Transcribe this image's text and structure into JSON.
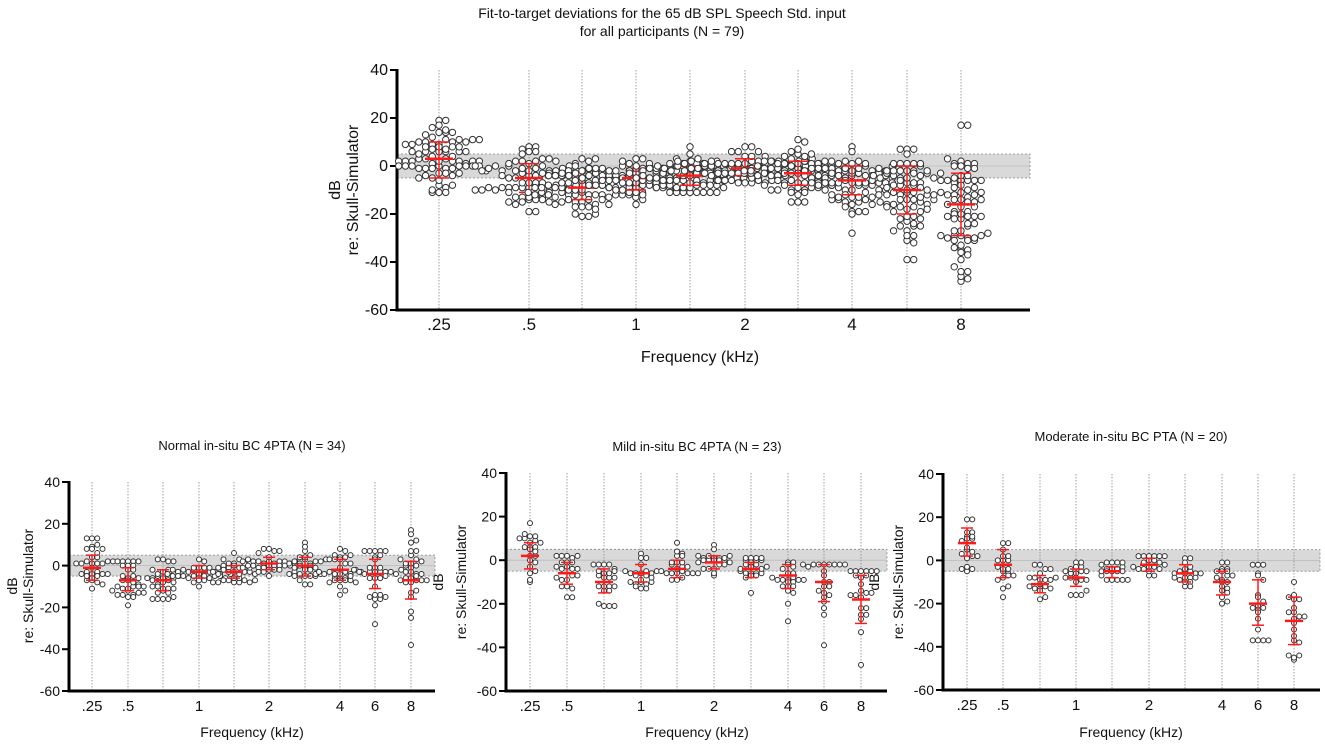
{
  "chart_data": [
    {
      "type": "scatter",
      "title": [
        "Fit-to-target deviations for the 65 dB SPL Speech Std. input",
        "for all participants (N = 79)"
      ],
      "n": 79,
      "xlabel": "Frequency (kHz)",
      "ylabel": [
        "dB",
        "re: Skull-Simulator"
      ],
      "ylim": [
        -60,
        40
      ],
      "yticks": [
        "40",
        "20",
        "0",
        "-20",
        "-40",
        "-60"
      ],
      "target_band": [
        -5,
        5
      ],
      "groups": [
        ".25",
        ".5",
        ".75",
        "1",
        "1.5",
        "2",
        "3",
        "4",
        "6",
        "8"
      ],
      "xtick_labels": {
        "0": ".25",
        "1": ".5",
        "3": "1",
        "5": "2",
        "7": "4",
        "9": "8"
      },
      "mean": [
        3,
        -5,
        -9,
        -5,
        -4,
        -1,
        -3,
        -6,
        -10,
        -16
      ],
      "sd_low": [
        -5,
        -11,
        -14,
        -10,
        -8,
        -4,
        -8,
        -12,
        -20,
        -29
      ],
      "sd_high": [
        10,
        1,
        -4,
        -1,
        0,
        3,
        2,
        0,
        0,
        -3
      ],
      "min": [
        -11,
        -19,
        -21,
        -16,
        -11,
        -7,
        -15,
        -28,
        -39,
        -48
      ],
      "max": [
        19,
        8,
        3,
        3,
        8,
        8,
        11,
        8,
        7,
        17
      ]
    },
    {
      "type": "scatter",
      "title": [
        "Normal in-situ BC 4PTA  (N = 34)"
      ],
      "n": 34,
      "xlabel": "Frequency (kHz)",
      "ylabel": [
        "dB",
        "re: Skull-Simulator"
      ],
      "ylim": [
        -60,
        40
      ],
      "yticks": [
        "40",
        "20",
        "0",
        "-20",
        "-40",
        "-60"
      ],
      "target_band": [
        -5,
        5
      ],
      "groups": [
        ".25",
        ".5",
        ".75",
        "1",
        "1.5",
        "2",
        "3",
        "4",
        "6",
        "8"
      ],
      "xtick_labels": {
        "0": ".25",
        "1": ".5",
        "3": "1",
        "5": "2",
        "7": "4",
        "8": "6",
        "9": "8"
      },
      "mean": [
        -1,
        -7,
        -7,
        -3,
        -3,
        1,
        0,
        -2,
        -4,
        -7
      ],
      "sd_low": [
        -7,
        -12,
        -12,
        -6,
        -6,
        -2,
        -5,
        -7,
        -11,
        -16
      ],
      "sd_high": [
        5,
        -1,
        -2,
        0,
        0,
        4,
        4,
        3,
        3,
        2
      ],
      "min": [
        -11,
        -19,
        -16,
        -10,
        -8,
        -5,
        -9,
        -14,
        -28,
        -38
      ],
      "max": [
        13,
        2,
        3,
        3,
        6,
        8,
        11,
        8,
        7,
        17
      ]
    },
    {
      "type": "scatter",
      "title": [
        "Mild in-situ BC 4PTA (N = 23)"
      ],
      "n": 23,
      "xlabel": "Frequency (kHz)",
      "ylabel": [
        "dB",
        "re: Skull-Simulator"
      ],
      "ylim": [
        -60,
        40
      ],
      "yticks": [
        "40",
        "20",
        "0",
        "-20",
        "-40",
        "-60"
      ],
      "target_band": [
        -5,
        5
      ],
      "groups": [
        ".25",
        ".5",
        ".75",
        "1",
        "1.5",
        "2",
        "3",
        "4",
        "6",
        "8"
      ],
      "xtick_labels": {
        "0": ".25",
        "1": ".5",
        "3": "1",
        "5": "2",
        "7": "4",
        "8": "6",
        "9": "8"
      },
      "mean": [
        2,
        -6,
        -10,
        -6,
        -4,
        -1,
        -4,
        -7,
        -10,
        -18
      ],
      "sd_low": [
        -4,
        -11,
        -15,
        -10,
        -8,
        -4,
        -8,
        -13,
        -19,
        -29
      ],
      "sd_high": [
        8,
        -1,
        -4,
        -2,
        0,
        2,
        -1,
        -2,
        -2,
        -7
      ],
      "min": [
        -10,
        -17,
        -21,
        -13,
        -9,
        -7,
        -15,
        -28,
        -39,
        -48
      ],
      "max": [
        17,
        2,
        -2,
        3,
        8,
        7,
        1,
        -1,
        -2,
        -5
      ]
    },
    {
      "type": "scatter",
      "title": [
        "Moderate in-situ BC PTA (N = 20)"
      ],
      "n": 20,
      "xlabel": "Frequency (kHz)",
      "ylabel": [
        "dB",
        "re: Skull-Simulator"
      ],
      "ylim": [
        -60,
        40
      ],
      "yticks": [
        "40",
        "20",
        "0",
        "-20",
        "-40",
        "-60"
      ],
      "target_band": [
        -5,
        5
      ],
      "groups": [
        ".25",
        ".5",
        ".75",
        "1",
        "1.5",
        "2",
        "3",
        "4",
        "6",
        "8"
      ],
      "xtick_labels": {
        "0": ".25",
        "1": ".5",
        "3": "1",
        "5": "2",
        "7": "4",
        "8": "6",
        "9": "8"
      },
      "mean": [
        8,
        -2,
        -11,
        -8,
        -5,
        -2,
        -6,
        -10,
        -20,
        -28
      ],
      "sd_low": [
        2,
        -8,
        -15,
        -12,
        -8,
        -5,
        -10,
        -16,
        -30,
        -39
      ],
      "sd_high": [
        15,
        5,
        -7,
        -4,
        -3,
        1,
        -2,
        -5,
        -9,
        -17
      ],
      "min": [
        -5,
        -17,
        -18,
        -16,
        -9,
        -7,
        -12,
        -20,
        -37,
        -46
      ],
      "max": [
        19,
        8,
        -2,
        -1,
        -1,
        2,
        1,
        -1,
        -2,
        -10
      ]
    }
  ],
  "colors": {
    "error_bar": "#ff1a1a",
    "dot": "#333333",
    "band": "#d9d9d9",
    "grid": "#888888"
  }
}
